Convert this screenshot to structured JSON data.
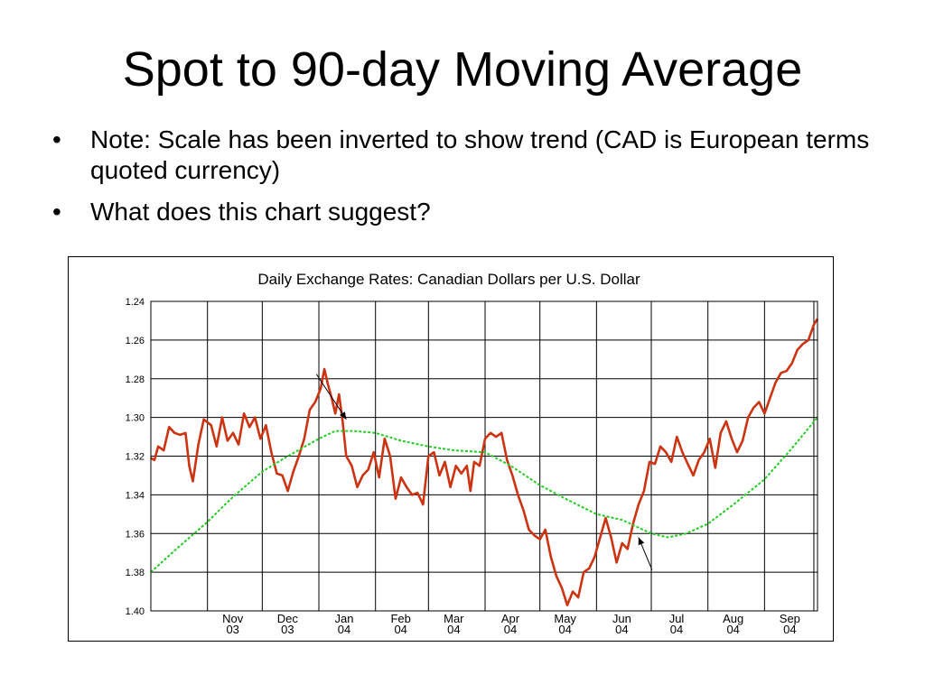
{
  "slide": {
    "title": "Spot to 90-day Moving Average",
    "bullets": [
      "Note:  Scale has been inverted to show trend (CAD is European terms quoted currency)",
      "What does this chart suggest?"
    ],
    "bullet_symbol": "•"
  },
  "chart_data": {
    "type": "line",
    "title": "Daily Exchange Rates: Canadian Dollars per U.S. Dollar",
    "xlabel": "",
    "ylabel": "",
    "y_inverted": true,
    "ylim": [
      1.24,
      1.4
    ],
    "yticks": [
      "1.24",
      "1.26",
      "1.28",
      "1.30",
      "1.32",
      "1.34",
      "1.36",
      "1.38",
      "1.40"
    ],
    "x_domain": [
      "2003-10-01",
      "2004-09-30"
    ],
    "x_month_ticks": [
      {
        "date": "2003-11-01",
        "month": "Nov",
        "year": "03"
      },
      {
        "date": "2003-12-01",
        "month": "Dec",
        "year": "03"
      },
      {
        "date": "2004-01-01",
        "month": "Jan",
        "year": "04"
      },
      {
        "date": "2004-02-01",
        "month": "Feb",
        "year": "04"
      },
      {
        "date": "2004-03-01",
        "month": "Mar",
        "year": "04"
      },
      {
        "date": "2004-04-01",
        "month": "Apr",
        "year": "04"
      },
      {
        "date": "2004-05-01",
        "month": "May",
        "year": "04"
      },
      {
        "date": "2004-06-01",
        "month": "Jun",
        "year": "04"
      },
      {
        "date": "2004-07-01",
        "month": "Jul",
        "year": "04"
      },
      {
        "date": "2004-08-01",
        "month": "Aug",
        "year": "04"
      },
      {
        "date": "2004-09-01",
        "month": "Sep",
        "year": "04"
      }
    ],
    "grid": true,
    "colors": {
      "spot": "#cc3311",
      "moving_average": "#22cc22",
      "grid": "#000000"
    },
    "series": [
      {
        "line_style": "solid",
        "points": [
          [
            "2003-10-01",
            1.321
          ],
          [
            "2003-10-03",
            1.322
          ],
          [
            "2003-10-05",
            1.315
          ],
          [
            "2003-10-08",
            1.317
          ],
          [
            "2003-10-11",
            1.305
          ],
          [
            "2003-10-14",
            1.308
          ],
          [
            "2003-10-17",
            1.309
          ],
          [
            "2003-10-20",
            1.308
          ],
          [
            "2003-10-22",
            1.325
          ],
          [
            "2003-10-24",
            1.333
          ],
          [
            "2003-10-27",
            1.314
          ],
          [
            "2003-10-30",
            1.301
          ],
          [
            "2003-11-03",
            1.304
          ],
          [
            "2003-11-06",
            1.315
          ],
          [
            "2003-11-09",
            1.3
          ],
          [
            "2003-11-12",
            1.312
          ],
          [
            "2003-11-15",
            1.308
          ],
          [
            "2003-11-18",
            1.314
          ],
          [
            "2003-11-21",
            1.298
          ],
          [
            "2003-11-24",
            1.305
          ],
          [
            "2003-11-27",
            1.3
          ],
          [
            "2003-11-30",
            1.311
          ],
          [
            "2003-12-03",
            1.304
          ],
          [
            "2003-12-06",
            1.318
          ],
          [
            "2003-12-09",
            1.329
          ],
          [
            "2003-12-12",
            1.33
          ],
          [
            "2003-12-15",
            1.338
          ],
          [
            "2003-12-18",
            1.328
          ],
          [
            "2003-12-21",
            1.32
          ],
          [
            "2003-12-24",
            1.311
          ],
          [
            "2003-12-27",
            1.296
          ],
          [
            "2003-12-30",
            1.292
          ],
          [
            "2004-01-02",
            1.285
          ],
          [
            "2004-01-04",
            1.275
          ],
          [
            "2004-01-06",
            1.283
          ],
          [
            "2004-01-08",
            1.29
          ],
          [
            "2004-01-10",
            1.298
          ],
          [
            "2004-01-12",
            1.288
          ],
          [
            "2004-01-14",
            1.302
          ],
          [
            "2004-01-16",
            1.32
          ],
          [
            "2004-01-19",
            1.325
          ],
          [
            "2004-01-22",
            1.336
          ],
          [
            "2004-01-25",
            1.33
          ],
          [
            "2004-01-28",
            1.327
          ],
          [
            "2004-01-31",
            1.318
          ],
          [
            "2004-02-03",
            1.331
          ],
          [
            "2004-02-06",
            1.311
          ],
          [
            "2004-02-09",
            1.32
          ],
          [
            "2004-02-12",
            1.342
          ],
          [
            "2004-02-15",
            1.331
          ],
          [
            "2004-02-18",
            1.336
          ],
          [
            "2004-02-21",
            1.34
          ],
          [
            "2004-02-24",
            1.339
          ],
          [
            "2004-02-27",
            1.345
          ],
          [
            "2004-03-01",
            1.32
          ],
          [
            "2004-03-04",
            1.318
          ],
          [
            "2004-03-07",
            1.33
          ],
          [
            "2004-03-10",
            1.323
          ],
          [
            "2004-03-13",
            1.336
          ],
          [
            "2004-03-16",
            1.325
          ],
          [
            "2004-03-19",
            1.329
          ],
          [
            "2004-03-22",
            1.325
          ],
          [
            "2004-03-24",
            1.338
          ],
          [
            "2004-03-26",
            1.323
          ],
          [
            "2004-03-29",
            1.325
          ],
          [
            "2004-04-01",
            1.311
          ],
          [
            "2004-04-04",
            1.308
          ],
          [
            "2004-04-07",
            1.31
          ],
          [
            "2004-04-10",
            1.308
          ],
          [
            "2004-04-13",
            1.322
          ],
          [
            "2004-04-16",
            1.33
          ],
          [
            "2004-04-19",
            1.34
          ],
          [
            "2004-04-22",
            1.348
          ],
          [
            "2004-04-25",
            1.358
          ],
          [
            "2004-04-28",
            1.361
          ],
          [
            "2004-05-01",
            1.363
          ],
          [
            "2004-05-04",
            1.358
          ],
          [
            "2004-05-07",
            1.372
          ],
          [
            "2004-05-10",
            1.382
          ],
          [
            "2004-05-13",
            1.388
          ],
          [
            "2004-05-16",
            1.397
          ],
          [
            "2004-05-19",
            1.39
          ],
          [
            "2004-05-22",
            1.393
          ],
          [
            "2004-05-25",
            1.38
          ],
          [
            "2004-05-28",
            1.378
          ],
          [
            "2004-05-31",
            1.372
          ],
          [
            "2004-06-03",
            1.362
          ],
          [
            "2004-06-06",
            1.352
          ],
          [
            "2004-06-09",
            1.362
          ],
          [
            "2004-06-12",
            1.375
          ],
          [
            "2004-06-15",
            1.365
          ],
          [
            "2004-06-18",
            1.368
          ],
          [
            "2004-06-21",
            1.355
          ],
          [
            "2004-06-24",
            1.345
          ],
          [
            "2004-06-27",
            1.338
          ],
          [
            "2004-06-30",
            1.323
          ],
          [
            "2004-07-03",
            1.324
          ],
          [
            "2004-07-06",
            1.315
          ],
          [
            "2004-07-09",
            1.318
          ],
          [
            "2004-07-12",
            1.323
          ],
          [
            "2004-07-15",
            1.31
          ],
          [
            "2004-07-18",
            1.318
          ],
          [
            "2004-07-21",
            1.324
          ],
          [
            "2004-07-24",
            1.33
          ],
          [
            "2004-07-27",
            1.322
          ],
          [
            "2004-07-30",
            1.318
          ],
          [
            "2004-08-02",
            1.311
          ],
          [
            "2004-08-05",
            1.326
          ],
          [
            "2004-08-08",
            1.308
          ],
          [
            "2004-08-11",
            1.302
          ],
          [
            "2004-08-14",
            1.311
          ],
          [
            "2004-08-17",
            1.318
          ],
          [
            "2004-08-20",
            1.312
          ],
          [
            "2004-08-23",
            1.3
          ],
          [
            "2004-08-26",
            1.295
          ],
          [
            "2004-08-29",
            1.292
          ],
          [
            "2004-09-01",
            1.298
          ],
          [
            "2004-09-04",
            1.29
          ],
          [
            "2004-09-07",
            1.282
          ],
          [
            "2004-09-10",
            1.277
          ],
          [
            "2004-09-13",
            1.276
          ],
          [
            "2004-09-16",
            1.272
          ],
          [
            "2004-09-19",
            1.265
          ],
          [
            "2004-09-22",
            1.262
          ],
          [
            "2004-09-25",
            1.26
          ],
          [
            "2004-09-28",
            1.252
          ],
          [
            "2004-09-30",
            1.249
          ]
        ]
      },
      {
        "line_style": "dashed",
        "points": [
          [
            "2003-10-01",
            1.38
          ],
          [
            "2003-10-15",
            1.368
          ],
          [
            "2003-11-01",
            1.354
          ],
          [
            "2003-11-15",
            1.341
          ],
          [
            "2003-12-01",
            1.328
          ],
          [
            "2003-12-15",
            1.32
          ],
          [
            "2004-01-01",
            1.311
          ],
          [
            "2004-01-10",
            1.307
          ],
          [
            "2004-01-20",
            1.307
          ],
          [
            "2004-02-01",
            1.308
          ],
          [
            "2004-02-15",
            1.312
          ],
          [
            "2004-03-01",
            1.315
          ],
          [
            "2004-03-15",
            1.317
          ],
          [
            "2004-04-01",
            1.318
          ],
          [
            "2004-04-15",
            1.325
          ],
          [
            "2004-05-01",
            1.335
          ],
          [
            "2004-05-15",
            1.342
          ],
          [
            "2004-06-01",
            1.35
          ],
          [
            "2004-06-15",
            1.353
          ],
          [
            "2004-07-01",
            1.36
          ],
          [
            "2004-07-10",
            1.362
          ],
          [
            "2004-07-20",
            1.36
          ],
          [
            "2004-08-01",
            1.355
          ],
          [
            "2004-08-15",
            1.345
          ],
          [
            "2004-09-01",
            1.332
          ],
          [
            "2004-09-15",
            1.317
          ],
          [
            "2004-09-30",
            1.3
          ]
        ]
      }
    ],
    "annotations": [
      {
        "type": "arrow",
        "points_to": [
          "2004-01-16",
          1.301
        ]
      },
      {
        "type": "arrow",
        "points_to": [
          "2004-06-24",
          1.362
        ]
      }
    ]
  }
}
